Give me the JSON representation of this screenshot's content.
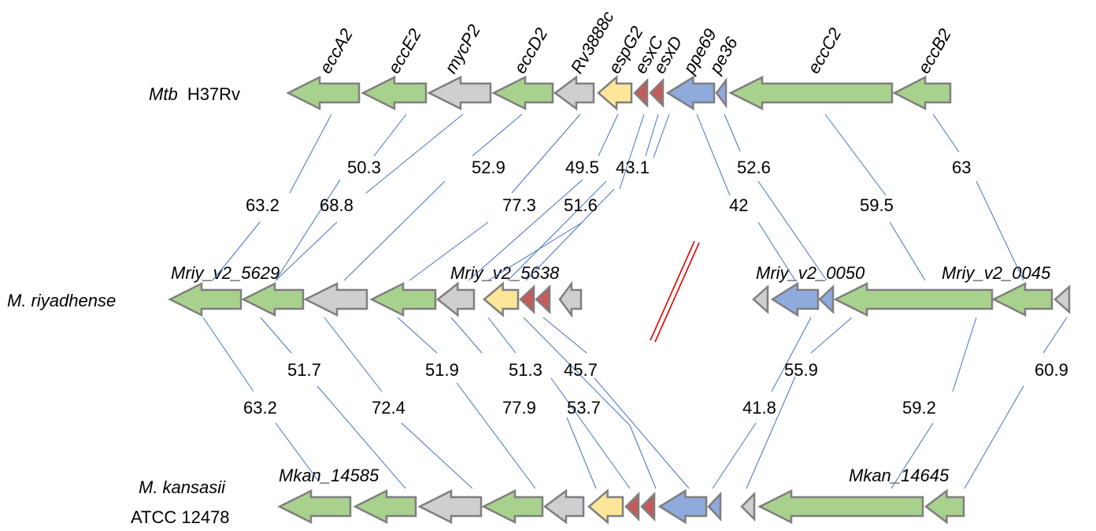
{
  "colors": {
    "green": "#a9d18e",
    "grey": "#d0cece",
    "yellow": "#ffe699",
    "red": "#c55a5a",
    "blue": "#8faadc",
    "line": "#4472c4",
    "break": "#e00000"
  },
  "organisms": {
    "mtb": {
      "italic": "Mtb",
      "rest": "H37Rv"
    },
    "riy": {
      "italic": "M. riyadhense"
    },
    "kan": {
      "italic": "M. kansasii",
      "rest": "ATCC 12478"
    }
  },
  "gene_labels": {
    "mtb": [
      "eccA2",
      "eccE2",
      "mycP2",
      "eccD2",
      "Rv3888c",
      "espG2",
      "esxC",
      "esxD",
      "ppe69",
      "pe36",
      "eccC2",
      "eccB2"
    ],
    "riy": [
      "Mriy_v2_5629",
      "Mriy_v2_5638",
      "Mriy_v2_0050",
      "Mriy_v2_0045"
    ],
    "kan": [
      "Mkan_14585",
      "Mkan_14645"
    ]
  },
  "identity_top": [
    "63.2",
    "50.3",
    "68.8",
    "52.9",
    "77.3",
    "49.5",
    "51.6",
    "43.1",
    "42",
    "52.6",
    "59.5",
    "63"
  ],
  "identity_bottom": [
    "63.2",
    "51.7",
    "72.4",
    "51.9",
    "77.9",
    "51.3",
    "53.7",
    "45.7",
    "41.8",
    "55.9",
    "59.2",
    "60.9"
  ]
}
